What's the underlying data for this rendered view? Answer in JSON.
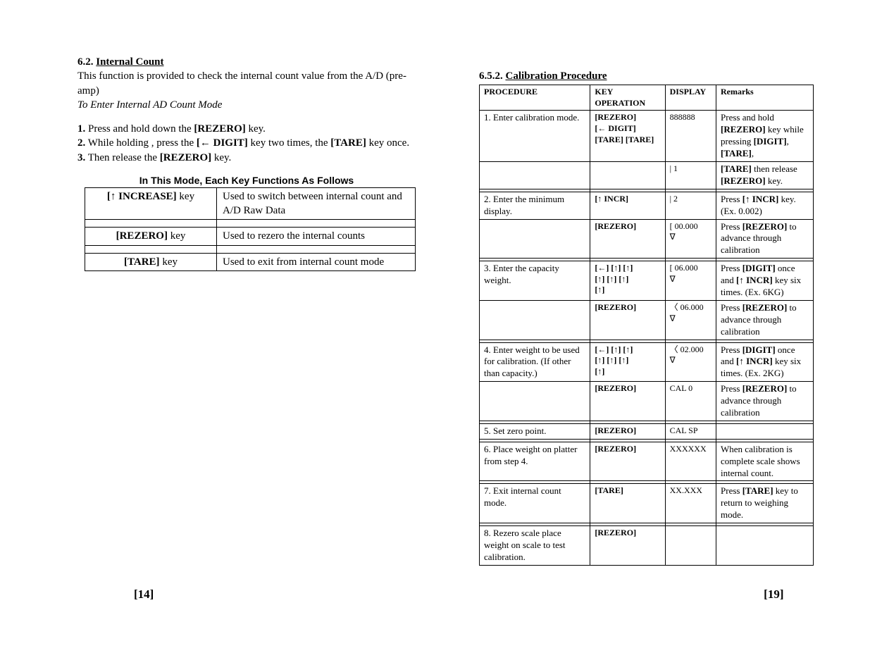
{
  "left": {
    "secNum": "6.2. ",
    "secTitle": "Internal Count",
    "intro1": "This function is provided to check the internal count value from the A/D (pre-amp)",
    "intro2italic": " To Enter Internal AD Count Mode",
    "steps": [
      {
        "n": "1.",
        "t_pre": " Press and hold down the ",
        "key": "[REZERO]",
        "t_post": " key."
      },
      {
        "n": "2.",
        "t_pre": " While holding , press the ",
        "key": "[← DIGIT]",
        "t_mid": " key two times, the ",
        "key2": "[TARE]",
        "t_post": " key once."
      },
      {
        "n": "3.",
        "t_pre": " Then release the ",
        "key": "[REZERO]",
        "t_post": " key."
      }
    ],
    "sansHeading": "In This Mode, Each Key Functions As Follows",
    "keyRows": [
      {
        "k": "[↑  INCREASE] key",
        "d": "Used to switch between internal count and A/D Raw Data"
      },
      {
        "k": "[REZERO] key",
        "d": "Used to rezero the internal counts"
      },
      {
        "k": "[TARE] key",
        "d": "Used to exit from internal count mode"
      }
    ],
    "pageNum": "[14]"
  },
  "right": {
    "secNum": "6.5.2. ",
    "secTitle": "Calibration Procedure",
    "headers": {
      "p": "PROCEDURE",
      "k": "KEY OPERATION",
      "d": "DISPLAY",
      "r": "Remarks"
    },
    "rows": [
      {
        "proc": "1. Enter calibration mode.",
        "key": "[REZERO]\n[← DIGIT] [TARE] [TARE]",
        "disp": "888888",
        "rem": [
          [
            "Press and hold "
          ],
          [
            "b",
            "[REZERO]"
          ],
          [
            " key while pressing "
          ],
          [
            "b",
            "[DIGIT]"
          ],
          [
            ", "
          ],
          [
            "b",
            "[TARE]"
          ],
          [
            ","
          ]
        ]
      },
      {
        "proc": "",
        "key": "",
        "disp": "|         1",
        "rem": [
          [
            "b",
            "[TARE]"
          ],
          [
            " then release "
          ],
          [
            "b",
            "[REZERO]"
          ],
          [
            " key."
          ]
        ]
      },
      {
        "sep": true
      },
      {
        "proc": "2. Enter the minimum display.",
        "key": "[↑ INCR]",
        "disp": "|         2",
        "rem": [
          [
            "Press  "
          ],
          [
            "b",
            "[↑ INCR]"
          ],
          [
            " key. (Ex. 0.002)"
          ]
        ]
      },
      {
        "proc": "",
        "key": "[REZERO]",
        "disp": "[  00.000\n    ∇",
        "rem": [
          [
            "Press "
          ],
          [
            "b",
            "[REZERO]"
          ],
          [
            " to advance through calibration"
          ]
        ]
      },
      {
        "sep": true
      },
      {
        "proc": "3. Enter the capacity weight.",
        "key": "[←]  [↑] [↑]\n[↑] [↑] [↑]\n[↑]",
        "disp": "[  06.000\n    ∇",
        "rem": [
          [
            "Press "
          ],
          [
            "b",
            "[DIGIT]"
          ],
          [
            " once and "
          ],
          [
            "b",
            "[↑ INCR]"
          ],
          [
            " key six times.      (Ex. 6KG)"
          ]
        ]
      },
      {
        "proc": "",
        "key": "[REZERO]",
        "disp": "〈 06.000\n    ∇",
        "rem": [
          [
            "Press "
          ],
          [
            "b",
            "[REZERO]"
          ],
          [
            " to advance through calibration"
          ]
        ]
      },
      {
        "sep": true
      },
      {
        "proc": "4. Enter weight to be used for calibration.   (If other than capacity.)",
        "key": "[←]  [↑] [↑]\n[↑] [↑] [↑]\n[↑]",
        "disp": "〈 02.000\n    ∇",
        "rem": [
          [
            "Press "
          ],
          [
            "b",
            "[DIGIT]"
          ],
          [
            " once and "
          ],
          [
            "b",
            "[↑ INCR]"
          ],
          [
            " key six times.   (Ex. 2KG)"
          ]
        ]
      },
      {
        "proc": "",
        "key": "[REZERO]",
        "disp": "CAL   0",
        "rem": [
          [
            "Press "
          ],
          [
            "b",
            "[REZERO]"
          ],
          [
            " to advance through calibration"
          ]
        ]
      },
      {
        "sep": true
      },
      {
        "proc": "5. Set zero point.",
        "key": "[REZERO]",
        "disp": "CAL  SP",
        "rem": []
      },
      {
        "sep": true
      },
      {
        "proc": "6. Place weight on platter from step 4.",
        "key": "[REZERO]",
        "disp": "XXXXXX",
        "rem": [
          [
            "When calibration is complete scale shows internal count."
          ]
        ]
      },
      {
        "sep": true
      },
      {
        "proc": "7. Exit internal count mode.",
        "key": "[TARE]",
        "disp": "XX.XXX",
        "rem": [
          [
            "Press "
          ],
          [
            "b",
            "[TARE]"
          ],
          [
            " key to return to weighing mode."
          ]
        ]
      },
      {
        "sep": true
      },
      {
        "proc": "8. Rezero scale place weight on scale to test calibration.",
        "key": "[REZERO]",
        "disp": "",
        "rem": []
      }
    ],
    "pageNum": "[19]"
  }
}
